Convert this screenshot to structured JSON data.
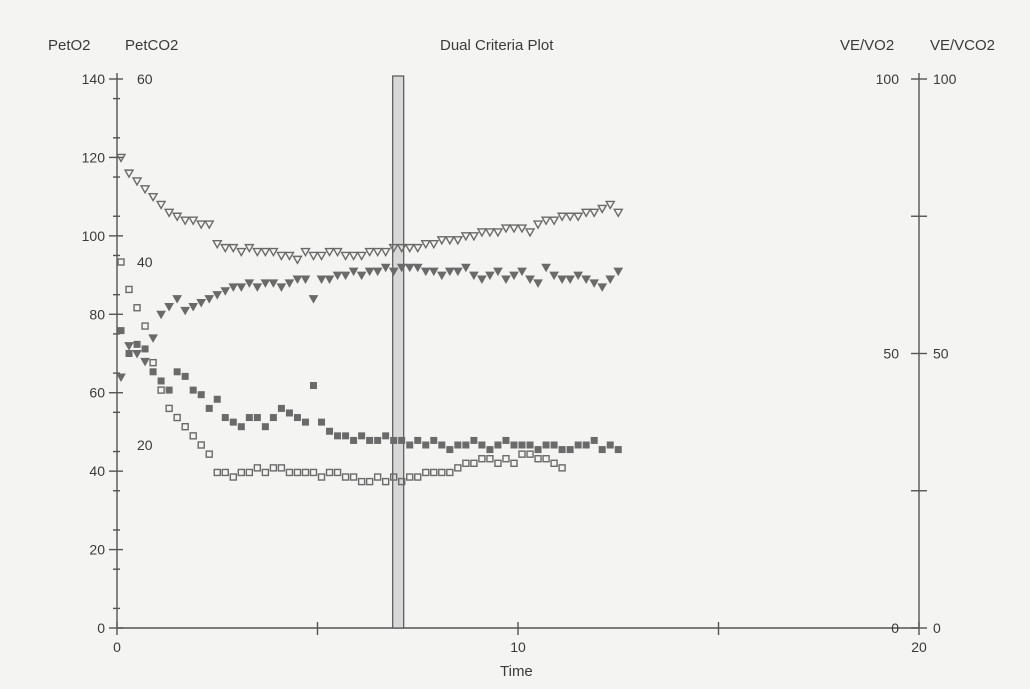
{
  "chart_data": {
    "type": "scatter",
    "title": "Dual Criteria Plot",
    "xlabel": "Time",
    "left_axis_labels": [
      "PetO2",
      "PetCO2"
    ],
    "right_axis_labels": [
      "VE/VO2",
      "VE/VCO2"
    ],
    "xlim": [
      0,
      20
    ],
    "x_ticks": [
      "0",
      "10",
      "20"
    ],
    "y_left_petO2": {
      "ylim": [
        0,
        140
      ],
      "ticks": [
        "0",
        "20",
        "40",
        "60",
        "80",
        "100",
        "120",
        "140"
      ]
    },
    "y_left_petCO2": {
      "ylim": [
        0,
        60
      ],
      "ticks": [
        "20",
        "40",
        "60"
      ]
    },
    "y_right": {
      "ylim": [
        0,
        100
      ],
      "ticks": [
        "0",
        "50",
        "100"
      ]
    },
    "vertical_marker_x": 7.0,
    "colors": {
      "points": "#6a6a6a",
      "axis": "#555555",
      "marker_fill": "#d8d8d8"
    },
    "series": [
      {
        "marker": "open-triangle",
        "axis": "petO2",
        "x": [
          0.1,
          0.3,
          0.5,
          0.7,
          0.9,
          1.1,
          1.3,
          1.5,
          1.7,
          1.9,
          2.1,
          2.3,
          2.5,
          2.7,
          2.9,
          3.1,
          3.3,
          3.5,
          3.7,
          3.9,
          4.1,
          4.3,
          4.5,
          4.7,
          4.9,
          5.1,
          5.3,
          5.5,
          5.7,
          5.9,
          6.1,
          6.3,
          6.5,
          6.7,
          6.9,
          7.1,
          7.3,
          7.5,
          7.7,
          7.9,
          8.1,
          8.3,
          8.5,
          8.7,
          8.9,
          9.1,
          9.3,
          9.5,
          9.7,
          9.9,
          10.1,
          10.3,
          10.5,
          10.7,
          10.9,
          11.1,
          11.3,
          11.5,
          11.7,
          11.9,
          12.1,
          12.3,
          12.5
        ],
        "y": [
          120,
          116,
          114,
          112,
          110,
          108,
          106,
          105,
          104,
          104,
          103,
          103,
          98,
          97,
          97,
          96,
          97,
          96,
          96,
          96,
          95,
          95,
          94,
          96,
          95,
          95,
          96,
          96,
          95,
          95,
          95,
          96,
          96,
          96,
          97,
          97,
          97,
          97,
          98,
          98,
          99,
          99,
          99,
          100,
          100,
          101,
          101,
          101,
          102,
          102,
          102,
          101,
          103,
          104,
          104,
          105,
          105,
          105,
          106,
          106,
          107,
          108,
          106
        ]
      },
      {
        "marker": "filled-triangle",
        "axis": "petO2",
        "x": [
          0.1,
          0.3,
          0.5,
          0.7,
          0.9,
          1.1,
          1.3,
          1.5,
          1.7,
          1.9,
          2.1,
          2.3,
          2.5,
          2.7,
          2.9,
          3.1,
          3.3,
          3.5,
          3.7,
          3.9,
          4.1,
          4.3,
          4.5,
          4.7,
          4.9,
          5.1,
          5.3,
          5.5,
          5.7,
          5.9,
          6.1,
          6.3,
          6.5,
          6.7,
          6.9,
          7.1,
          7.3,
          7.5,
          7.7,
          7.9,
          8.1,
          8.3,
          8.5,
          8.7,
          8.9,
          9.1,
          9.3,
          9.5,
          9.7,
          9.9,
          10.1,
          10.3,
          10.5,
          10.7,
          10.9,
          11.1,
          11.3,
          11.5,
          11.7,
          11.9,
          12.1,
          12.3,
          12.5
        ],
        "y": [
          64,
          72,
          70,
          68,
          74,
          80,
          82,
          84,
          81,
          82,
          83,
          84,
          85,
          86,
          87,
          87,
          88,
          87,
          88,
          88,
          87,
          88,
          89,
          89,
          84,
          89,
          89,
          90,
          90,
          91,
          90,
          91,
          91,
          92,
          91,
          92,
          92,
          92,
          91,
          91,
          90,
          91,
          91,
          92,
          90,
          89,
          90,
          91,
          89,
          90,
          91,
          89,
          88,
          92,
          90,
          89,
          89,
          90,
          89,
          88,
          87,
          89,
          91
        ]
      },
      {
        "marker": "filled-square",
        "axis": "petCO2",
        "x": [
          0.1,
          0.3,
          0.5,
          0.7,
          0.9,
          1.1,
          1.3,
          1.5,
          1.7,
          1.9,
          2.1,
          2.3,
          2.5,
          2.7,
          2.9,
          3.1,
          3.3,
          3.5,
          3.7,
          3.9,
          4.1,
          4.3,
          4.5,
          4.7,
          4.9,
          5.1,
          5.3,
          5.5,
          5.7,
          5.9,
          6.1,
          6.3,
          6.5,
          6.7,
          6.9,
          7.1,
          7.3,
          7.5,
          7.7,
          7.9,
          8.1,
          8.3,
          8.5,
          8.7,
          8.9,
          9.1,
          9.3,
          9.5,
          9.7,
          9.9,
          10.1,
          10.3,
          10.5,
          10.7,
          10.9,
          11.1,
          11.3,
          11.5,
          11.7,
          11.9,
          12.1,
          12.3,
          12.5
        ],
        "y": [
          32.5,
          30,
          31,
          30.5,
          28,
          27,
          26,
          28,
          27.5,
          26,
          25.5,
          24,
          25,
          23,
          22.5,
          22,
          23,
          23,
          22,
          23,
          24,
          23.5,
          23,
          22.5,
          26.5,
          22.5,
          21.5,
          21,
          21,
          20.5,
          21,
          20.5,
          20.5,
          21,
          20.5,
          20.5,
          20,
          20.5,
          20,
          20.5,
          20,
          19.5,
          20,
          20,
          20.5,
          20,
          19.5,
          20,
          20.5,
          20,
          20,
          20,
          19.5,
          20,
          20,
          19.5,
          19.5,
          20,
          20,
          20.5,
          19.5,
          20,
          19.5
        ]
      },
      {
        "marker": "open-square",
        "axis": "petCO2",
        "x": [
          0.1,
          0.3,
          0.5,
          0.7,
          0.9,
          1.1,
          1.3,
          1.5,
          1.7,
          1.9,
          2.1,
          2.3,
          2.5,
          2.7,
          2.9,
          3.1,
          3.3,
          3.5,
          3.7,
          3.9,
          4.1,
          4.3,
          4.5,
          4.7,
          4.9,
          5.1,
          5.3,
          5.5,
          5.7,
          5.9,
          6.1,
          6.3,
          6.5,
          6.7,
          6.9,
          7.1,
          7.3,
          7.5,
          7.7,
          7.9,
          8.1,
          8.3,
          8.5,
          8.7,
          8.9,
          9.1,
          9.3,
          9.5,
          9.7,
          9.9,
          10.1,
          10.3,
          10.5,
          10.7,
          10.9,
          11.1
        ],
        "y": [
          40,
          37,
          35,
          33,
          29,
          26,
          24,
          23,
          22,
          21,
          20,
          19,
          17,
          17,
          16.5,
          17,
          17,
          17.5,
          17,
          17.5,
          17.5,
          17,
          17,
          17,
          17,
          16.5,
          17,
          17,
          16.5,
          16.5,
          16,
          16,
          16.5,
          16,
          16.5,
          16,
          16.5,
          16.5,
          17,
          17,
          17,
          17,
          17.5,
          18,
          18,
          18.5,
          18.5,
          18,
          18.5,
          18,
          19,
          19,
          18.5,
          18.5,
          18,
          17.5
        ]
      }
    ]
  }
}
